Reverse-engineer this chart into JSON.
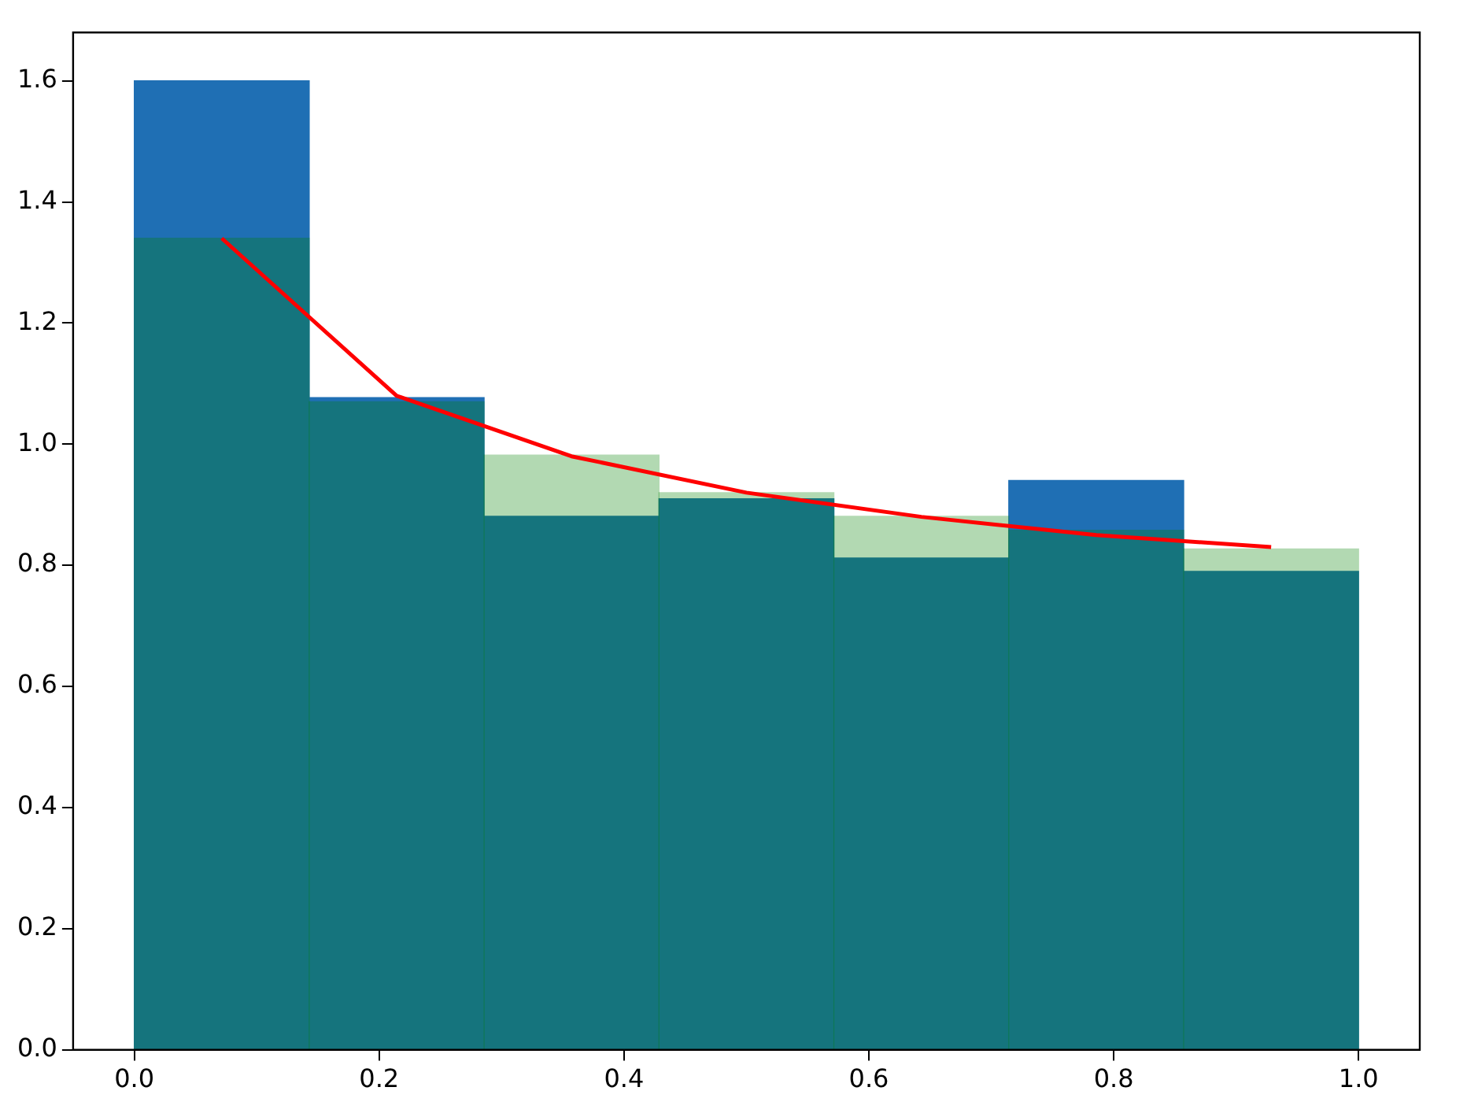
{
  "chart_data": {
    "type": "histogram",
    "bins": [
      0,
      0.142857,
      0.285714,
      0.428571,
      0.571429,
      0.714286,
      0.857143,
      1
    ],
    "series": [
      {
        "color": "#1f6fb4",
        "values": [
          1.6,
          1.077,
          0.881,
          0.91,
          0.812,
          0.94,
          0.79
        ]
      },
      {
        "color": "#008000",
        "values": [
          1.34,
          1.07,
          0.982,
          0.92,
          0.881,
          0.858,
          0.827
        ]
      },
      {
        "type": "line",
        "color": "#ff0000",
        "x": [
          0.0714,
          0.2143,
          0.3571,
          0.5,
          0.6429,
          0.7857,
          0.9286
        ],
        "values": [
          1.34,
          1.08,
          0.98,
          0.92,
          0.88,
          0.85,
          0.83
        ]
      }
    ],
    "xlim": [
      -0.05,
      1.05
    ],
    "ylim": [
      0,
      1.68
    ],
    "xticks": [
      {
        "value": 0,
        "label": "0.0"
      },
      {
        "value": 0.2,
        "label": "0.2"
      },
      {
        "value": 0.4,
        "label": "0.4"
      },
      {
        "value": 0.6,
        "label": "0.6"
      },
      {
        "value": 0.8,
        "label": "0.8"
      },
      {
        "value": 1,
        "label": "1.0"
      }
    ],
    "yticks": [
      {
        "value": 0,
        "label": "0.0"
      },
      {
        "value": 0.2,
        "label": "0.2"
      },
      {
        "value": 0.4,
        "label": "0.4"
      },
      {
        "value": 0.6,
        "label": "0.6"
      },
      {
        "value": 0.8,
        "label": "0.8"
      },
      {
        "value": 1,
        "label": "1.0"
      },
      {
        "value": 1.2,
        "label": "1.2"
      },
      {
        "value": 1.4,
        "label": "1.4"
      },
      {
        "value": 1.6,
        "label": "1.6"
      }
    ],
    "grid": false,
    "legend": false
  }
}
